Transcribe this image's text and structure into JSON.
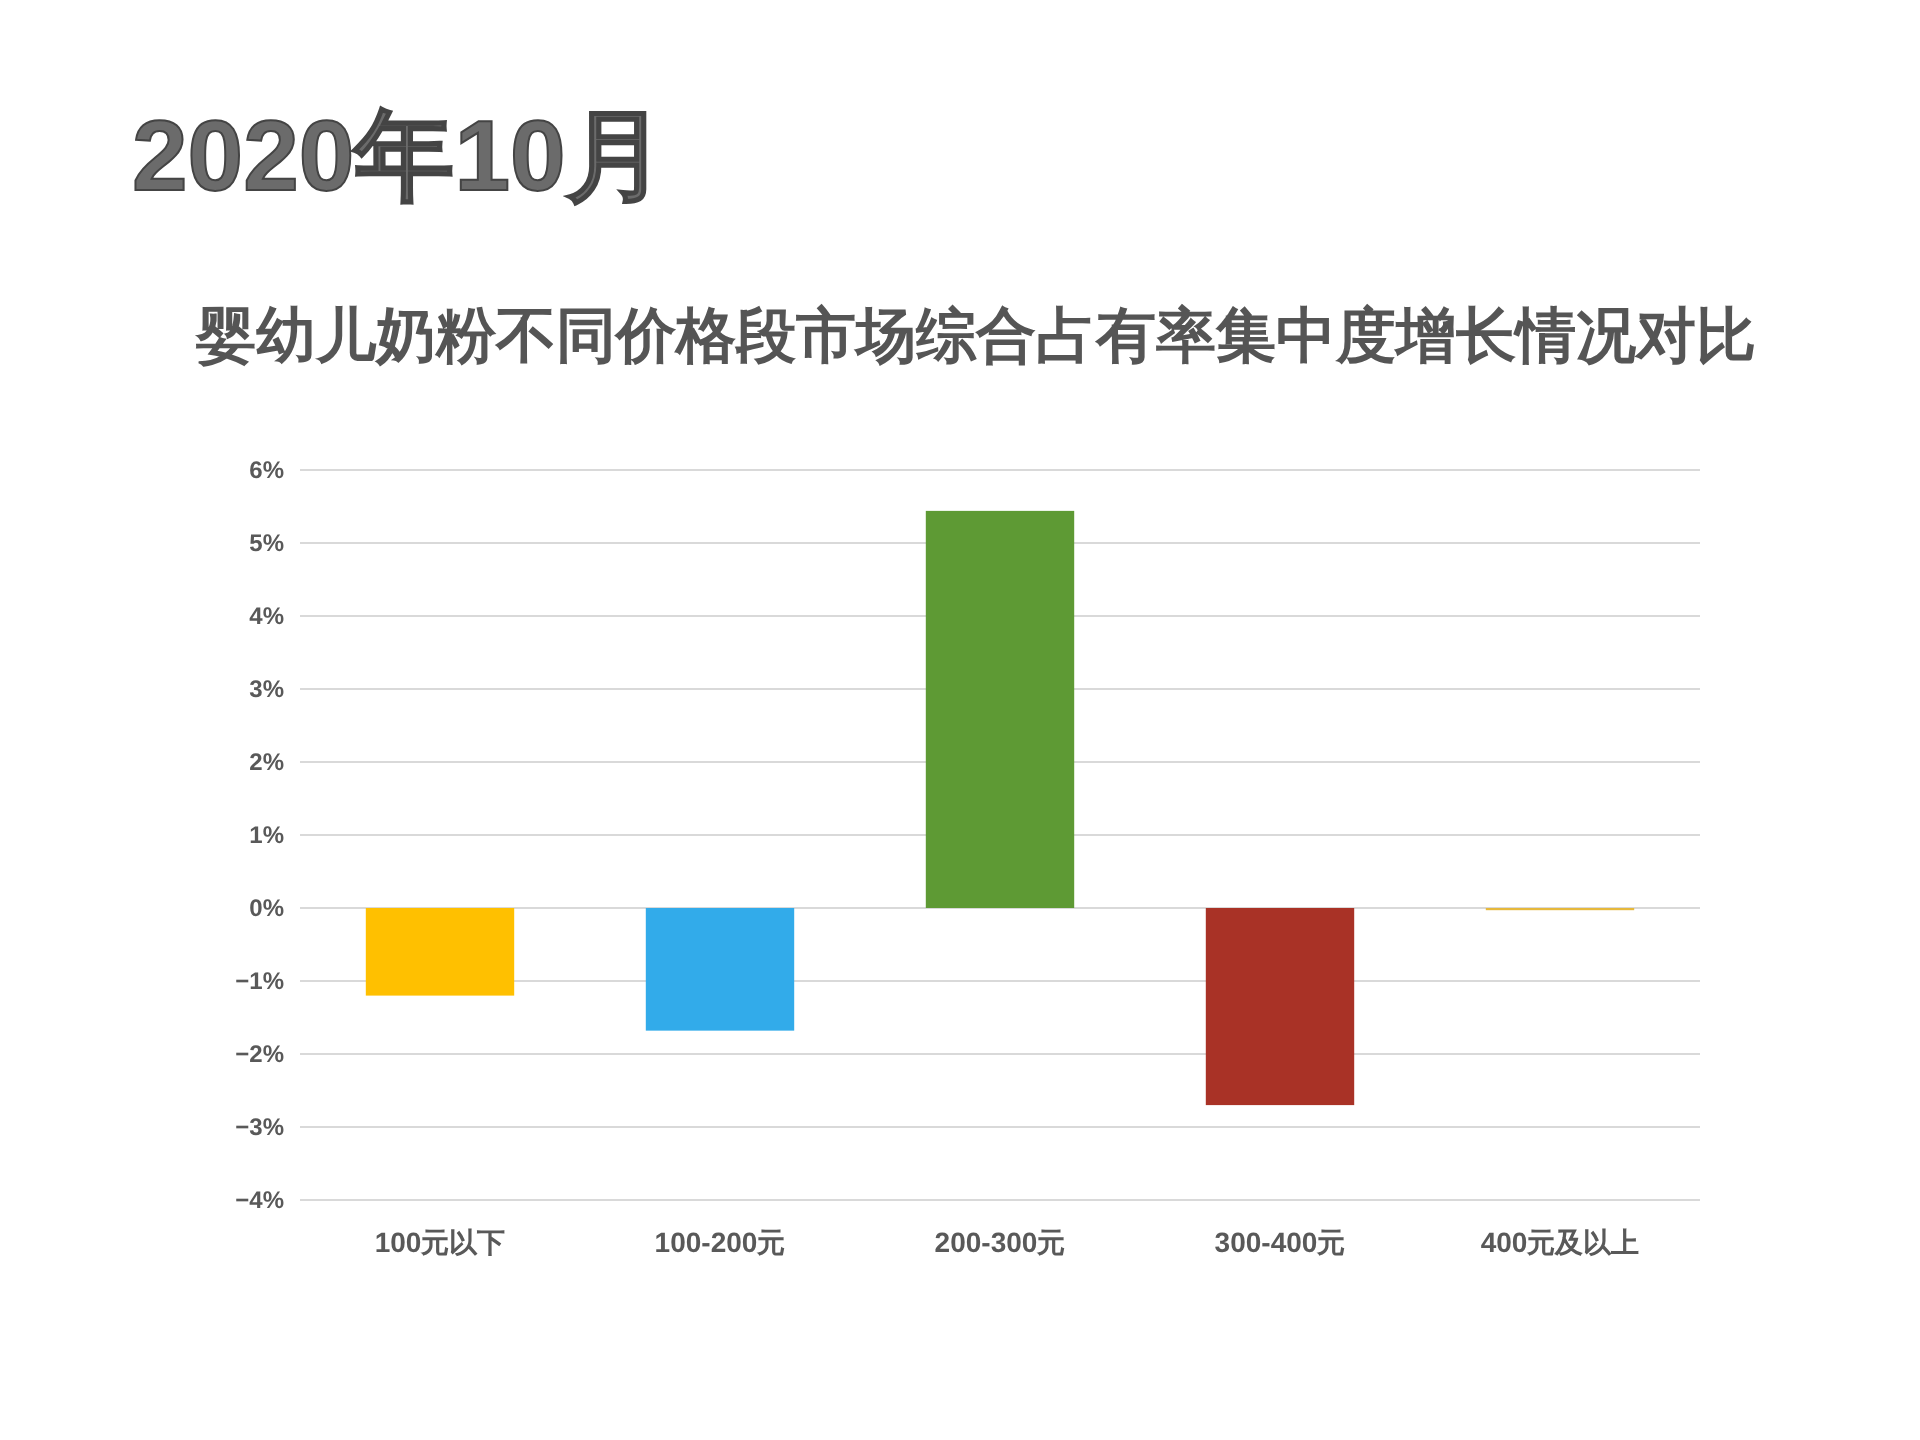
{
  "chart_data": {
    "type": "bar",
    "subtitle": "2020年10月",
    "title": "婴幼儿奶粉不同价格段市场综合占有率集中度增长情况对比",
    "categories": [
      "100元以下",
      "100-200元",
      "200-300元",
      "300-400元",
      "400元及以上"
    ],
    "values": [
      -1.2,
      -1.68,
      5.44,
      -2.7,
      -0.03
    ],
    "colors": [
      "#ffc000",
      "#32abea",
      "#5e9a34",
      "#a93226",
      "#e6b83c"
    ],
    "ylim": [
      -4,
      6
    ],
    "yticks": [
      {
        "value": -4,
        "label": "−4%"
      },
      {
        "value": -3,
        "label": "−3%"
      },
      {
        "value": -2,
        "label": "−2%"
      },
      {
        "value": -1,
        "label": "−1%"
      },
      {
        "value": 0,
        "label": "0%"
      },
      {
        "value": 1,
        "label": "1%"
      },
      {
        "value": 2,
        "label": "2%"
      },
      {
        "value": 3,
        "label": "3%"
      },
      {
        "value": 4,
        "label": "4%"
      },
      {
        "value": 5,
        "label": "5%"
      },
      {
        "value": 6,
        "label": "6%"
      }
    ],
    "grid": "y"
  }
}
